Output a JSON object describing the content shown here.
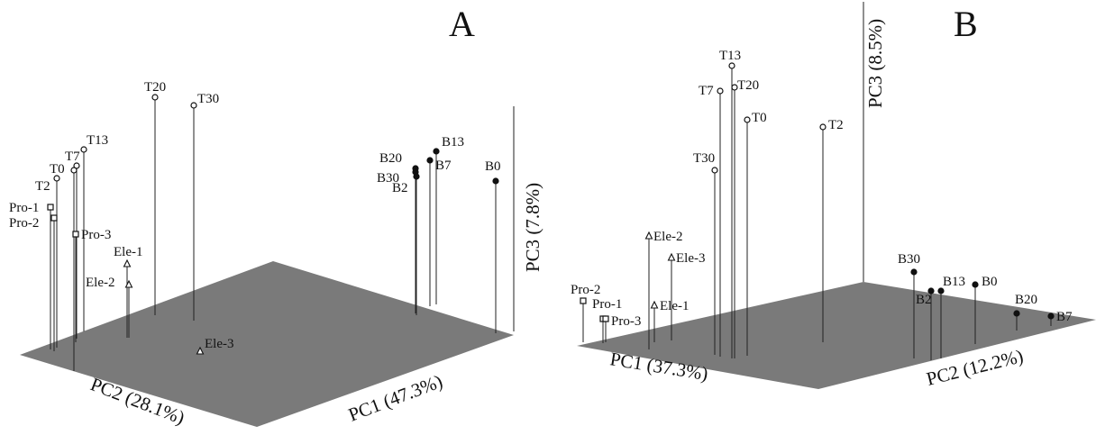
{
  "colors": {
    "plane": "#7a7a7a",
    "stem": "#222222",
    "marker": "#111111",
    "hollow_fill": "#ffffff"
  },
  "marker_legend": {
    "T": "hollow-circle",
    "B": "filled-circle",
    "Pro": "hollow-square",
    "Ele": "hollow-triangle"
  },
  "chart_data": [
    {
      "type": "scatter",
      "panel_label": "A",
      "axes": {
        "x": "PC1 (47.3%)",
        "y": "PC2 (28.1%)",
        "z": "PC3 (7.8%)"
      },
      "points": [
        {
          "label": "T20"
        },
        {
          "label": "T30"
        },
        {
          "label": "T13"
        },
        {
          "label": "T7"
        },
        {
          "label": "T0"
        },
        {
          "label": "T2"
        },
        {
          "label": "Pro-1"
        },
        {
          "label": "Pro-2"
        },
        {
          "label": "Pro-3"
        },
        {
          "label": "Ele-1"
        },
        {
          "label": "Ele-2"
        },
        {
          "label": "Ele-3"
        },
        {
          "label": "B13"
        },
        {
          "label": "B20"
        },
        {
          "label": "B7"
        },
        {
          "label": "B30"
        },
        {
          "label": "B2"
        },
        {
          "label": "B0"
        }
      ]
    },
    {
      "type": "scatter",
      "panel_label": "B",
      "axes": {
        "x": "PC1 (37.3%)",
        "y": "PC2 (12.2%)",
        "z": "PC3 (8.5%)"
      },
      "points": [
        {
          "label": "T13"
        },
        {
          "label": "T20"
        },
        {
          "label": "T7"
        },
        {
          "label": "T0"
        },
        {
          "label": "T2"
        },
        {
          "label": "T30"
        },
        {
          "label": "Ele-2"
        },
        {
          "label": "Ele-3"
        },
        {
          "label": "Ele-1"
        },
        {
          "label": "Pro-2"
        },
        {
          "label": "Pro-1"
        },
        {
          "label": "Pro-3"
        },
        {
          "label": "B30"
        },
        {
          "label": "B13"
        },
        {
          "label": "B0"
        },
        {
          "label": "B2"
        },
        {
          "label": "B20"
        },
        {
          "label": "B7"
        }
      ]
    }
  ]
}
